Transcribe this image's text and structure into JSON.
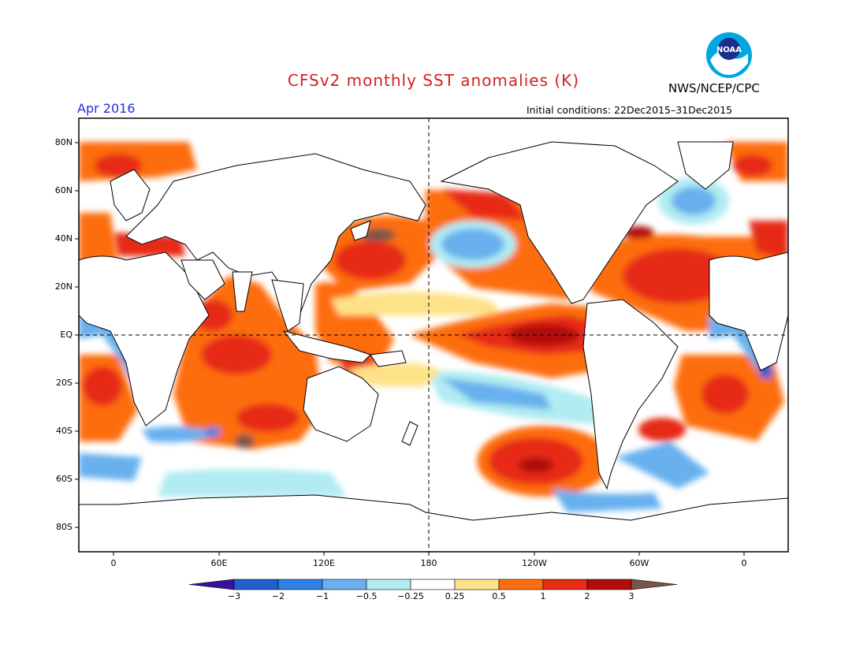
{
  "title": "CFSv2 monthly SST anomalies (K)",
  "agency": "NWS/NCEP/CPC",
  "valid_month": "Apr 2016",
  "initial_conditions": "Initial conditions: 22Dec2015–31Dec2015",
  "logo_text": "NOAA",
  "colors": {
    "title": "#d42020",
    "valid_month": "#2a2ae0"
  },
  "lat_ticks": [
    "80N",
    "60N",
    "40N",
    "20N",
    "EQ",
    "20S",
    "40S",
    "60S",
    "80S"
  ],
  "lon_ticks": [
    "0",
    "60E",
    "120E",
    "180",
    "120W",
    "60W",
    "0"
  ],
  "colorbar": {
    "labels": [
      "−3",
      "−2",
      "−1",
      "−0.5",
      "−0.25",
      "0.25",
      "0.5",
      "1",
      "2",
      "3"
    ],
    "colors": [
      "#3a10a0",
      "#1f5fd0",
      "#2e82e6",
      "#68b0ee",
      "#b0ecf2",
      "#ffffff",
      "#fee288",
      "#fd6d10",
      "#e62c14",
      "#b20c0c",
      "#7a5648"
    ]
  },
  "chart_data": {
    "type": "heatmap",
    "title": "CFSv2 monthly SST anomalies (K)",
    "valid": "Apr 2016",
    "initial_conditions": "22Dec2015–31Dec2015",
    "units": "K",
    "contour_levels": [
      -3,
      -2,
      -1,
      -0.5,
      -0.25,
      0.25,
      0.5,
      1,
      2,
      3
    ],
    "lon_range": [
      -20,
      380
    ],
    "lat_range": [
      -90,
      90
    ],
    "features": [
      {
        "region": "Eastern equatorial Pacific",
        "anomaly": "2 to 3"
      },
      {
        "region": "Northeast Pacific coast",
        "anomaly": "1 to 2"
      },
      {
        "region": "Central North Pacific",
        "anomaly": "-0.5 to -1"
      },
      {
        "region": "South-central Pacific",
        "anomaly": "1 to 2"
      },
      {
        "region": "Southeast Pacific",
        "anomaly": "-0.25 to -1"
      },
      {
        "region": "Tropical Indian Ocean",
        "anomaly": "0.5 to 2"
      },
      {
        "region": "Tropical North Atlantic",
        "anomaly": "1 to 2"
      },
      {
        "region": "Southeast Atlantic (Benguela)",
        "anomaly": "-1 to -3"
      },
      {
        "region": "North Atlantic subpolar",
        "anomaly": "-0.5 to -1"
      }
    ]
  }
}
